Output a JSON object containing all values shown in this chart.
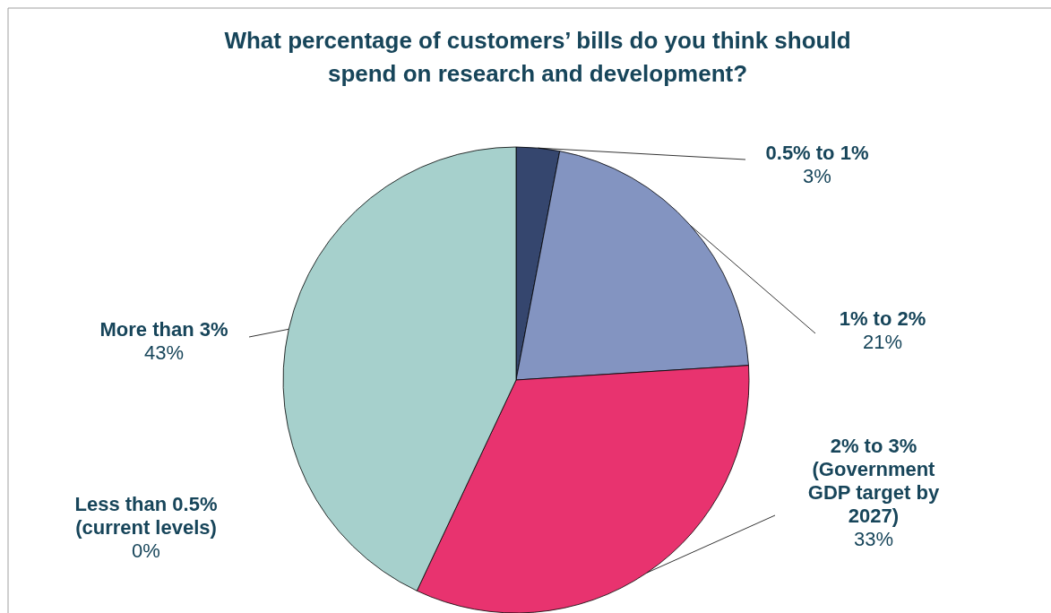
{
  "chart_data": {
    "type": "pie",
    "title": "What percentage of customers’ bills do you think should spend on research and development?",
    "categories": [
      "0.5% to 1%",
      "1% to 2%",
      "2% to 3% (Government GDP target by 2027)",
      "Less than 0.5% (current levels)",
      "More than 3%"
    ],
    "values": [
      3,
      21,
      33,
      0,
      43
    ],
    "colors": [
      "#35466e",
      "#8394c1",
      "#e8336f",
      null,
      "#a6d0cc"
    ],
    "value_labels": [
      "3%",
      "21%",
      "33%",
      "0%",
      "43%"
    ]
  }
}
